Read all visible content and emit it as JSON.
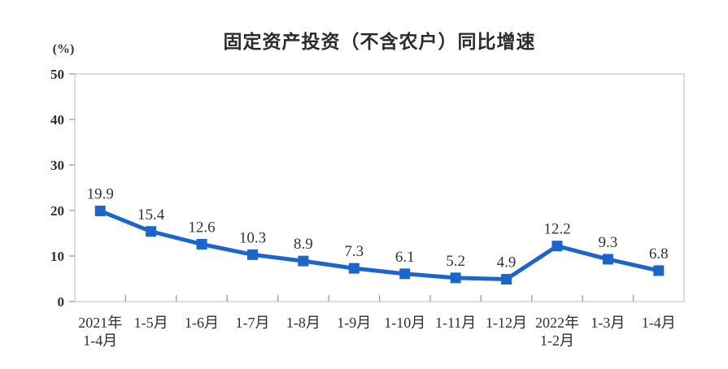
{
  "figure": {
    "title": "固定资产投资（不含农户）同比增速",
    "unit_label": "(%)"
  },
  "chart_data": {
    "type": "line",
    "title": "固定资产投资（不含农户）同比增速",
    "unit": "(%)",
    "categories": [
      "2021年\n1-4月",
      "1-5月",
      "1-6月",
      "1-7月",
      "1-8月",
      "1-9月",
      "1-10月",
      "1-11月",
      "1-12月",
      "2022年\n1-2月",
      "1-3月",
      "1-4月"
    ],
    "values": [
      19.9,
      15.4,
      12.6,
      10.3,
      8.9,
      7.3,
      6.1,
      5.2,
      4.9,
      12.2,
      9.3,
      6.8
    ],
    "point_labels": [
      "19.9",
      "15.4",
      "12.6",
      "10.3",
      "8.9",
      "7.3",
      "6.1",
      "5.2",
      "4.9",
      "12.2",
      "9.3",
      "6.8"
    ],
    "ylim": [
      0,
      50
    ],
    "yticks": [
      0,
      10,
      20,
      30,
      40,
      50
    ],
    "grid": false,
    "legend": "none",
    "marker": "square",
    "colors": {
      "line": "#1b66c8",
      "marker": "#1b66c8",
      "plot_border": "#c8c8c8",
      "tick": "#9a9a9a",
      "text": "#2f2f2f",
      "title": "#2b2b2b",
      "background": "#ffffff"
    }
  }
}
